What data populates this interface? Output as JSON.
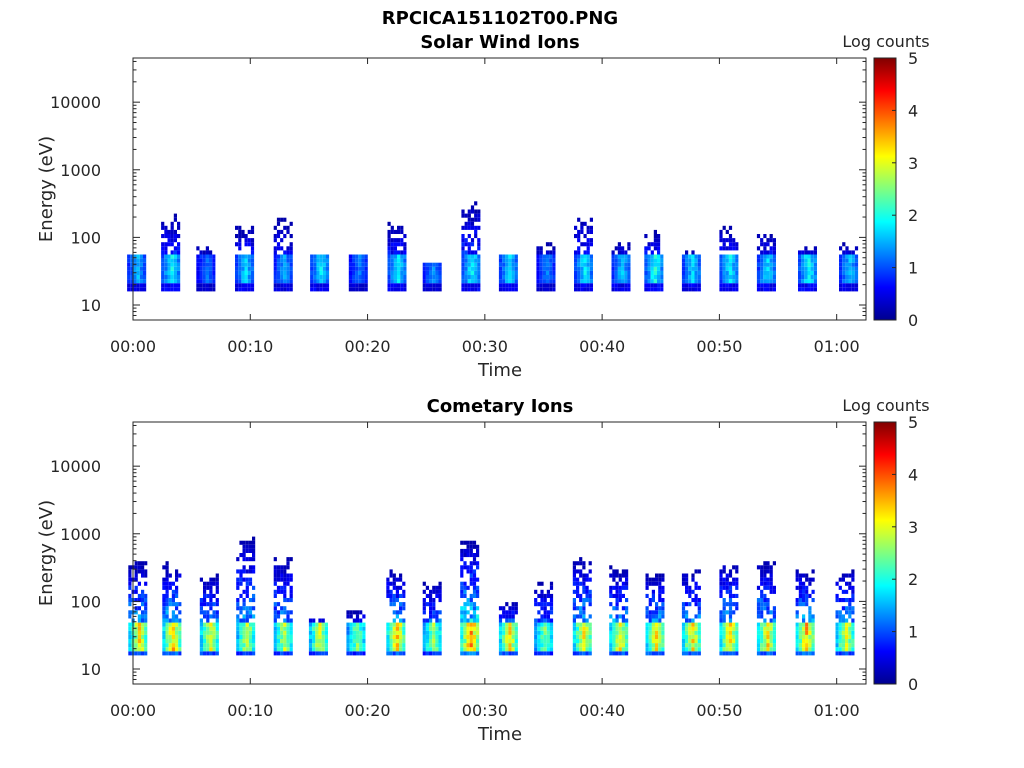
{
  "figure": {
    "suptitle": "RPCICA151102T00.PNG"
  },
  "colormap": {
    "name": "jet",
    "stops": [
      "#00008f",
      "#0000ff",
      "#00ffff",
      "#ffff00",
      "#ff0000",
      "#800000"
    ]
  },
  "chart_data": [
    {
      "type": "heatmap",
      "title": "Solar Wind Ions",
      "xlabel": "Time",
      "ylabel": "Energy (eV)",
      "y_scale": "log",
      "xlim_minutes": [
        0,
        62.5
      ],
      "ylim": [
        6,
        45000
      ],
      "x_ticks": [
        "00:00",
        "00:10",
        "00:20",
        "00:30",
        "00:40",
        "00:50",
        "01:00"
      ],
      "x_tick_minutes": [
        0,
        10,
        20,
        30,
        40,
        50,
        60
      ],
      "y_ticks": [
        "10",
        "100",
        "1000",
        "10000"
      ],
      "y_tick_values": [
        10,
        100,
        1000,
        10000
      ],
      "colorbar": {
        "label": "Log counts",
        "range": [
          0,
          5
        ],
        "ticks": [
          "0",
          "1",
          "2",
          "3",
          "4",
          "5"
        ]
      },
      "bursts_minutes": [
        0.3,
        3.2,
        6.2,
        9.5,
        12.8,
        15.9,
        19.2,
        22.5,
        25.5,
        28.8,
        32.0,
        35.2,
        38.4,
        41.6,
        44.4,
        47.6,
        50.8,
        54.0,
        57.5,
        61.0
      ],
      "burst_peak_log_counts": [
        1.7,
        2.1,
        1.3,
        1.9,
        1.6,
        2.0,
        1.4,
        2.0,
        1.5,
        2.1,
        1.9,
        1.4,
        2.0,
        1.8,
        2.2,
        1.9,
        2.0,
        1.9,
        2.1,
        1.8
      ],
      "burst_core_energy_ev": [
        33,
        33,
        33,
        33,
        33,
        33,
        33,
        33,
        33,
        33,
        33,
        33,
        33,
        33,
        33,
        33,
        33,
        33,
        33,
        33
      ],
      "burst_max_energy_ev": [
        60,
        280,
        100,
        200,
        300,
        60,
        60,
        220,
        40,
        500,
        60,
        100,
        300,
        100,
        150,
        70,
        180,
        150,
        80,
        90
      ]
    },
    {
      "type": "heatmap",
      "title": "Cometary Ions",
      "xlabel": "Time",
      "ylabel": "Energy (eV)",
      "y_scale": "log",
      "xlim_minutes": [
        0,
        62.5
      ],
      "ylim": [
        6,
        45000
      ],
      "x_ticks": [
        "00:00",
        "00:10",
        "00:20",
        "00:30",
        "00:40",
        "00:50",
        "01:00"
      ],
      "x_tick_minutes": [
        0,
        10,
        20,
        30,
        40,
        50,
        60
      ],
      "y_ticks": [
        "10",
        "100",
        "1000",
        "10000"
      ],
      "y_tick_values": [
        10,
        100,
        1000,
        10000
      ],
      "colorbar": {
        "label": "Log counts",
        "range": [
          0,
          5
        ],
        "ticks": [
          "0",
          "1",
          "2",
          "3",
          "4",
          "5"
        ]
      },
      "bursts_minutes": [
        0.4,
        3.3,
        6.5,
        9.6,
        12.8,
        15.8,
        19.0,
        22.4,
        25.5,
        28.7,
        32.0,
        35.0,
        38.3,
        41.4,
        44.5,
        47.6,
        50.8,
        54.0,
        57.3,
        60.7
      ],
      "burst_peak_log_counts": [
        3.6,
        3.8,
        3.4,
        3.2,
        3.2,
        3.3,
        2.8,
        3.8,
        3.0,
        4.2,
        3.6,
        2.8,
        3.6,
        3.5,
        3.6,
        3.6,
        3.7,
        3.6,
        3.9,
        3.4
      ],
      "burst_core_energy_ev": [
        28,
        28,
        28,
        28,
        28,
        28,
        28,
        28,
        28,
        28,
        28,
        28,
        28,
        28,
        28,
        28,
        28,
        28,
        28,
        28
      ],
      "burst_max_energy_ev": [
        500,
        450,
        300,
        1200,
        600,
        60,
        80,
        350,
        250,
        1000,
        100,
        250,
        550,
        400,
        300,
        350,
        500,
        500,
        350,
        400
      ]
    }
  ]
}
